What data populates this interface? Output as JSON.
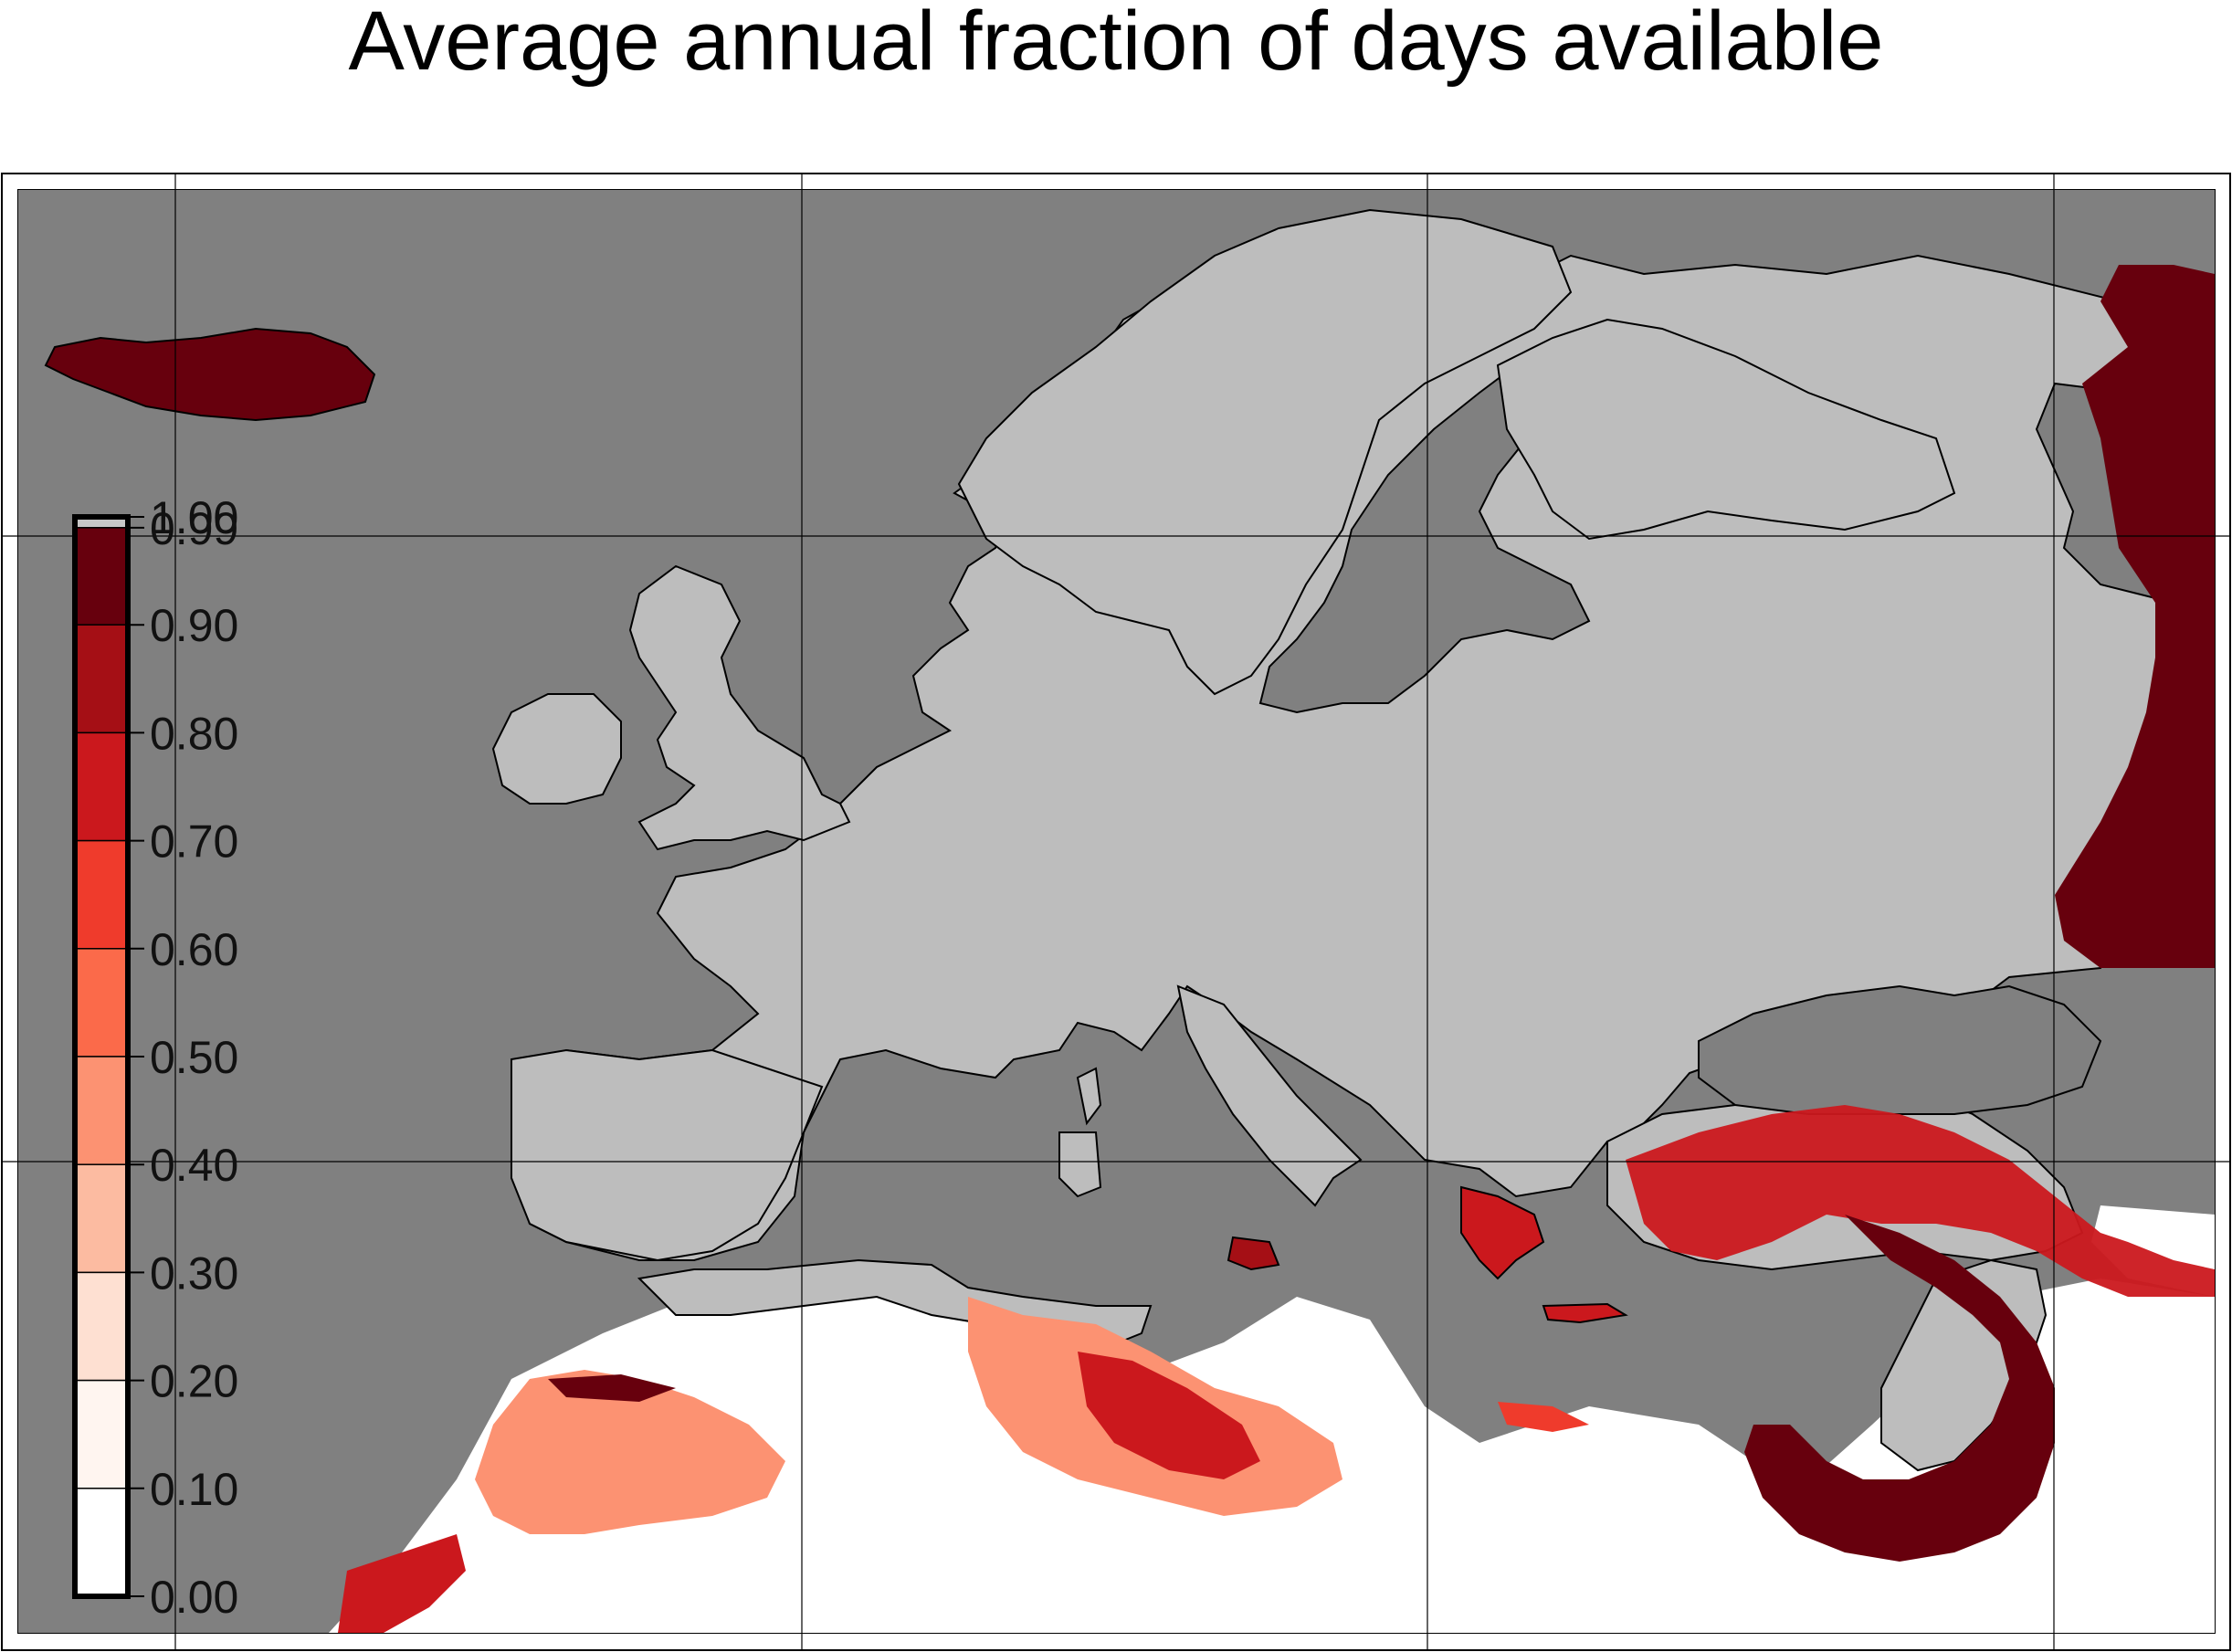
{
  "title": "Average annual fraction of days available",
  "colors": {
    "sea": "#808080",
    "land": "#bdbdbd",
    "outside": "#ffffff",
    "frame": "#000000"
  },
  "legend": {
    "ticks": [
      "1.00",
      "0.99",
      "0.90",
      "0.80",
      "0.70",
      "0.60",
      "0.50",
      "0.40",
      "0.30",
      "0.20",
      "0.10",
      "0.00"
    ],
    "bins": [
      {
        "from": 0.99,
        "to": 1.0,
        "color": "#c7c7c7"
      },
      {
        "from": 0.9,
        "to": 0.99,
        "color": "#67000d"
      },
      {
        "from": 0.8,
        "to": 0.9,
        "color": "#a50f15"
      },
      {
        "from": 0.7,
        "to": 0.8,
        "color": "#cb181d"
      },
      {
        "from": 0.6,
        "to": 0.7,
        "color": "#ef3b2c"
      },
      {
        "from": 0.5,
        "to": 0.6,
        "color": "#fb6a4a"
      },
      {
        "from": 0.4,
        "to": 0.5,
        "color": "#fc9272"
      },
      {
        "from": 0.3,
        "to": 0.4,
        "color": "#fcbba1"
      },
      {
        "from": 0.2,
        "to": 0.3,
        "color": "#fee0d2"
      },
      {
        "from": 0.1,
        "to": 0.2,
        "color": "#fff5f0"
      },
      {
        "from": 0.0,
        "to": 0.1,
        "color": "#ffffff"
      }
    ]
  }
}
